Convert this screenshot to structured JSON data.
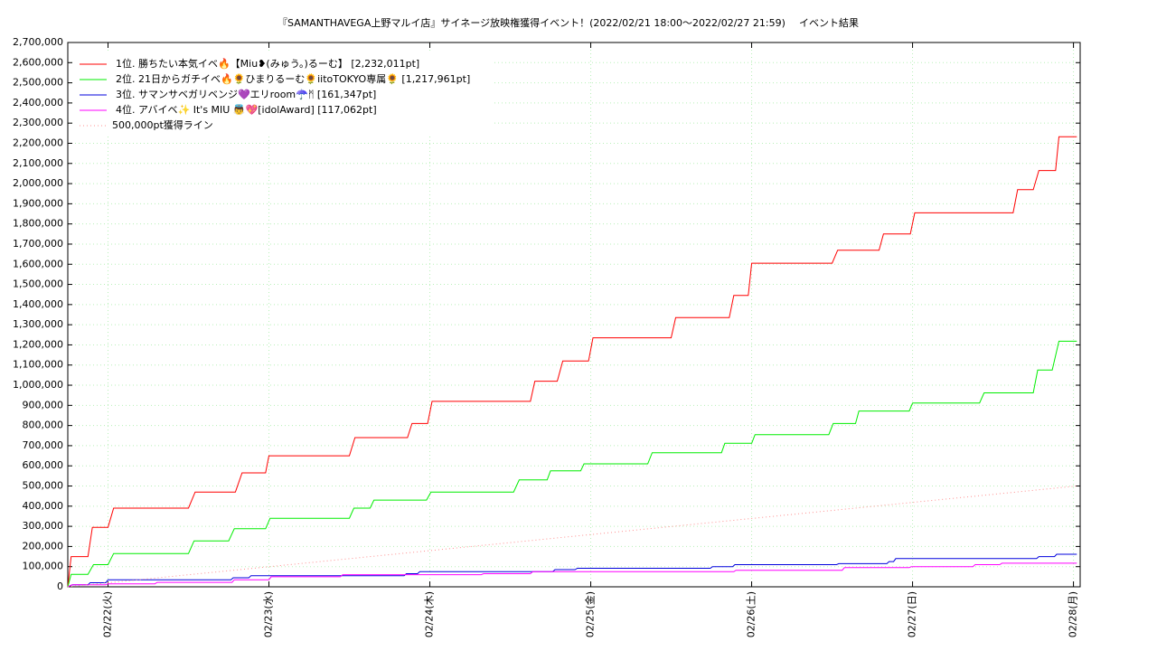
{
  "chart_data": {
    "type": "line",
    "title": "『SAMANTHAVEGA上野マルイ店』サイネージ放映権獲得イベント！(2022/02/21 18:00〜2022/02/27 21:59)",
    "subtitle": "イベント結果",
    "xlim": [
      "2022-02-21T18:00",
      "2022-02-28T01:00"
    ],
    "xticks": [
      {
        "value": "2022-02-22T00:00",
        "label": "02/22(火)"
      },
      {
        "value": "2022-02-23T00:00",
        "label": "02/23(水)"
      },
      {
        "value": "2022-02-24T00:00",
        "label": "02/24(木)"
      },
      {
        "value": "2022-02-25T00:00",
        "label": "02/25(金)"
      },
      {
        "value": "2022-02-26T00:00",
        "label": "02/26(土)"
      },
      {
        "value": "2022-02-27T00:00",
        "label": "02/27(日)"
      },
      {
        "value": "2022-02-28T00:00",
        "label": "02/28(月)"
      }
    ],
    "ylim": [
      0,
      2700000
    ],
    "yticks": [
      0,
      {
        "value": 100000,
        "label": "100,000"
      },
      {
        "value": 200000,
        "label": "200,000"
      },
      {
        "value": 300000,
        "label": "300,000"
      },
      {
        "value": 400000,
        "label": "400,000"
      },
      {
        "value": 500000,
        "label": "500,000"
      },
      {
        "value": 600000,
        "label": "600,000"
      },
      {
        "value": 700000,
        "label": "700,000"
      },
      {
        "value": 800000,
        "label": "800,000"
      },
      {
        "value": 900000,
        "label": "900,000"
      },
      {
        "value": 1000000,
        "label": "1,000,000"
      },
      {
        "value": 1100000,
        "label": "1,100,000"
      },
      {
        "value": 1200000,
        "label": "1,200,000"
      },
      {
        "value": 1300000,
        "label": "1,300,000"
      },
      {
        "value": 1400000,
        "label": "1,400,000"
      },
      {
        "value": 1500000,
        "label": "1,500,000"
      },
      {
        "value": 1600000,
        "label": "1,600,000"
      },
      {
        "value": 1700000,
        "label": "1,700,000"
      },
      {
        "value": 1800000,
        "label": "1,800,000"
      },
      {
        "value": 1900000,
        "label": "1,900,000"
      },
      {
        "value": 2000000,
        "label": "2,000,000"
      },
      {
        "value": 2100000,
        "label": "2,100,000"
      },
      {
        "value": 2200000,
        "label": "2,200,000"
      },
      {
        "value": 2300000,
        "label": "2,300,000"
      },
      {
        "value": 2400000,
        "label": "2,400,000"
      },
      {
        "value": 2500000,
        "label": "2,500,000"
      },
      {
        "value": 2600000,
        "label": "2,600,000"
      },
      {
        "value": 2700000,
        "label": "2,700,000"
      }
    ],
    "grid": true,
    "legend": "upper-left",
    "series": [
      {
        "name": "1位. 勝ちたい本気イベ🔥【Miu❥(みゅう。)るーむ】 [2,232,011pt]",
        "color": "#ff0000",
        "x": [
          "2022-02-21T18:00",
          "2022-02-21T18:30",
          "2022-02-21T21:00",
          "2022-02-21T21:40",
          "2022-02-22T00:00",
          "2022-02-22T00:50",
          "2022-02-22T12:00",
          "2022-02-22T13:00",
          "2022-02-22T19:00",
          "2022-02-22T20:00",
          "2022-02-22T23:30",
          "2022-02-23T00:00",
          "2022-02-23T12:00",
          "2022-02-23T12:50",
          "2022-02-23T20:40",
          "2022-02-23T21:20",
          "2022-02-23T23:40",
          "2022-02-24T00:20",
          "2022-02-24T15:00",
          "2022-02-24T15:40",
          "2022-02-24T19:00",
          "2022-02-24T19:50",
          "2022-02-24T23:40",
          "2022-02-25T00:20",
          "2022-02-25T12:00",
          "2022-02-25T12:40",
          "2022-02-25T20:40",
          "2022-02-25T21:20",
          "2022-02-25T23:30",
          "2022-02-26T00:00",
          "2022-02-26T12:00",
          "2022-02-26T12:50",
          "2022-02-26T19:00",
          "2022-02-26T19:40",
          "2022-02-26T23:40",
          "2022-02-27T00:20",
          "2022-02-27T15:00",
          "2022-02-27T15:40",
          "2022-02-27T18:00",
          "2022-02-27T18:50",
          "2022-02-27T21:20",
          "2022-02-27T21:50",
          "2022-02-28T00:30"
        ],
        "values": [
          0,
          150000,
          150000,
          295000,
          295000,
          390000,
          390000,
          470000,
          470000,
          565000,
          565000,
          650000,
          650000,
          740000,
          740000,
          810000,
          810000,
          920000,
          920000,
          1020000,
          1020000,
          1120000,
          1120000,
          1235000,
          1235000,
          1335000,
          1335000,
          1445000,
          1445000,
          1605000,
          1605000,
          1670000,
          1670000,
          1750000,
          1750000,
          1855000,
          1855000,
          1970000,
          1970000,
          2065000,
          2065000,
          2232011,
          2232011
        ]
      },
      {
        "name": "2位. 21日からガチイベ🔥🌻ひまりるーむ🌻iitoTOKYO専属🌻 [1,217,961pt]",
        "color": "#00ee00",
        "x": [
          "2022-02-21T18:00",
          "2022-02-21T18:30",
          "2022-02-21T21:00",
          "2022-02-21T21:50",
          "2022-02-22T00:00",
          "2022-02-22T00:50",
          "2022-02-22T12:00",
          "2022-02-22T12:50",
          "2022-02-22T18:00",
          "2022-02-22T18:50",
          "2022-02-22T23:30",
          "2022-02-23T00:10",
          "2022-02-23T12:00",
          "2022-02-23T12:40",
          "2022-02-23T15:05",
          "2022-02-23T15:40",
          "2022-02-23T23:30",
          "2022-02-24T00:10",
          "2022-02-24T12:30",
          "2022-02-24T13:20",
          "2022-02-24T17:30",
          "2022-02-24T18:00",
          "2022-02-24T22:30",
          "2022-02-24T23:00",
          "2022-02-25T08:30",
          "2022-02-25T09:10",
          "2022-02-25T19:30",
          "2022-02-25T20:00",
          "2022-02-26T00:00",
          "2022-02-26T00:30",
          "2022-02-26T11:30",
          "2022-02-26T12:10",
          "2022-02-26T15:30",
          "2022-02-26T16:00",
          "2022-02-26T23:30",
          "2022-02-27T00:00",
          "2022-02-27T10:00",
          "2022-02-27T10:40",
          "2022-02-27T18:00",
          "2022-02-27T18:40",
          "2022-02-27T20:50",
          "2022-02-27T21:50",
          "2022-02-28T00:30"
        ],
        "values": [
          0,
          62000,
          62000,
          110000,
          110000,
          165000,
          165000,
          228000,
          228000,
          288000,
          288000,
          340000,
          340000,
          390000,
          390000,
          430000,
          430000,
          470000,
          470000,
          530000,
          530000,
          575000,
          575000,
          610000,
          610000,
          665000,
          665000,
          712000,
          712000,
          755000,
          755000,
          810000,
          810000,
          872000,
          872000,
          912000,
          912000,
          962000,
          962000,
          1075000,
          1075000,
          1217961,
          1217961
        ]
      },
      {
        "name": "3位. サマンサベガリベンジ💜エリroom☂️ᛗ [161,347pt]",
        "color": "#0000dd",
        "x": [
          "2022-02-21T18:00",
          "2022-02-21T18:40",
          "2022-02-21T21:00",
          "2022-02-21T21:20",
          "2022-02-21T23:40",
          "2022-02-22T00:00",
          "2022-02-22T18:20",
          "2022-02-22T18:40",
          "2022-02-22T21:00",
          "2022-02-22T21:20",
          "2022-02-23T20:10",
          "2022-02-23T20:30",
          "2022-02-23T22:10",
          "2022-02-23T22:30",
          "2022-02-24T18:20",
          "2022-02-24T18:40",
          "2022-02-24T21:40",
          "2022-02-24T22:00",
          "2022-02-25T17:50",
          "2022-02-25T18:10",
          "2022-02-25T21:10",
          "2022-02-25T21:30",
          "2022-02-26T12:40",
          "2022-02-26T13:00",
          "2022-02-26T20:10",
          "2022-02-26T20:30",
          "2022-02-26T21:10",
          "2022-02-26T21:30",
          "2022-02-27T18:30",
          "2022-02-27T18:50",
          "2022-02-27T21:10",
          "2022-02-27T21:30",
          "2022-02-28T00:30"
        ],
        "values": [
          0,
          10000,
          10000,
          20000,
          20000,
          35000,
          35000,
          45000,
          45000,
          55000,
          55000,
          65000,
          65000,
          75000,
          75000,
          85000,
          85000,
          92000,
          92000,
          100000,
          100000,
          110000,
          110000,
          115000,
          115000,
          125000,
          125000,
          140000,
          140000,
          150000,
          150000,
          161347,
          161347
        ]
      },
      {
        "name": "4位. アバイベ✨ It's MIU 👼💖[idolAward] [117,062pt]",
        "color": "#ff00ff",
        "x": [
          "2022-02-21T18:00",
          "2022-02-21T18:40",
          "2022-02-21T23:40",
          "2022-02-22T00:00",
          "2022-02-22T07:00",
          "2022-02-22T07:20",
          "2022-02-22T18:30",
          "2022-02-22T18:50",
          "2022-02-23T00:00",
          "2022-02-23T00:20",
          "2022-02-23T10:40",
          "2022-02-23T11:00",
          "2022-02-24T07:40",
          "2022-02-24T08:00",
          "2022-02-24T15:00",
          "2022-02-24T15:20",
          "2022-02-25T21:20",
          "2022-02-25T21:40",
          "2022-02-26T13:30",
          "2022-02-26T13:50",
          "2022-02-26T23:30",
          "2022-02-26T23:50",
          "2022-02-27T09:00",
          "2022-02-27T09:20",
          "2022-02-27T13:00",
          "2022-02-27T13:20",
          "2022-02-28T00:30"
        ],
        "values": [
          0,
          10000,
          10000,
          15000,
          15000,
          22000,
          22000,
          35000,
          35000,
          50000,
          50000,
          60000,
          60000,
          65000,
          65000,
          75000,
          75000,
          82000,
          82000,
          95000,
          95000,
          100000,
          100000,
          110000,
          110000,
          117062,
          117062
        ]
      },
      {
        "name": "500,000pt獲得ライン",
        "color": "#ff9090",
        "style": "dotted",
        "x": [
          "2022-02-21T18:00",
          "2022-02-28T00:30"
        ],
        "values": [
          0,
          500000
        ]
      }
    ]
  }
}
